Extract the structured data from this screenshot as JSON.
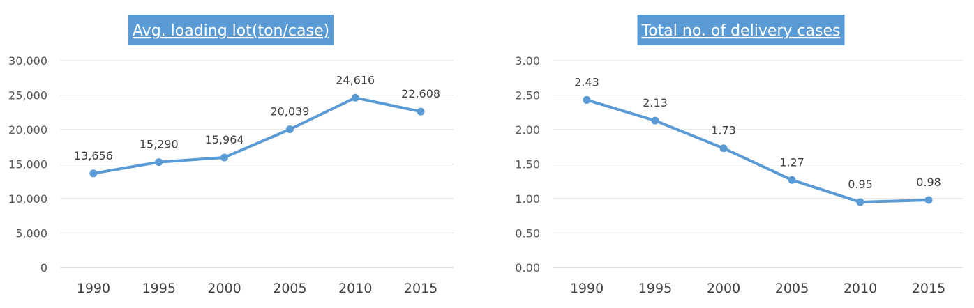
{
  "chart_data": [
    {
      "type": "line",
      "title": "Avg. loading lot(ton/case)",
      "categories": [
        "1990",
        "1995",
        "2000",
        "2005",
        "2010",
        "2015"
      ],
      "values": [
        13656,
        15290,
        15964,
        20039,
        24616,
        22608
      ],
      "data_labels": [
        "13,656",
        "15,290",
        "15,964",
        "20,039",
        "24,616",
        "22,608"
      ],
      "ylim": [
        0,
        30000
      ],
      "yticks": [
        0,
        5000,
        10000,
        15000,
        20000,
        25000,
        30000
      ],
      "ytick_labels": [
        "0",
        "5,000",
        "10,000",
        "15,000",
        "20,000",
        "25,000",
        "30,000"
      ],
      "grid": true,
      "title_bg": "#5b9bd5",
      "line_color": "#5b9bd5"
    },
    {
      "type": "line",
      "title": "Total no. of delivery cases",
      "categories": [
        "1990",
        "1995",
        "2000",
        "2005",
        "2010",
        "2015"
      ],
      "values": [
        2.43,
        2.13,
        1.73,
        1.27,
        0.95,
        0.98
      ],
      "data_labels": [
        "2.43",
        "2.13",
        "1.73",
        "1.27",
        "0.95",
        "0.98"
      ],
      "ylim": [
        0,
        3
      ],
      "yticks": [
        0,
        0.5,
        1,
        1.5,
        2,
        2.5,
        3
      ],
      "ytick_labels": [
        "0.00",
        "0.50",
        "1.00",
        "1.50",
        "2.00",
        "2.50",
        "3.00"
      ],
      "grid": true,
      "title_bg": "#5b9bd5",
      "line_color": "#5b9bd5"
    }
  ]
}
